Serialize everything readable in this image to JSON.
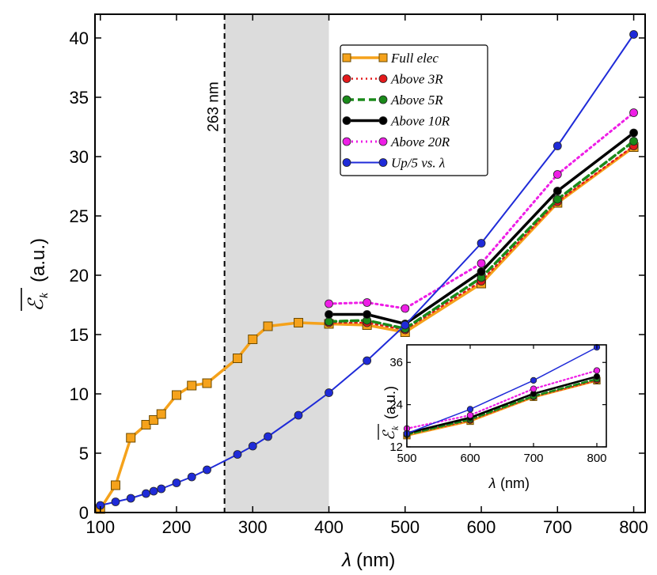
{
  "chart_data": {
    "type": "line",
    "main": {
      "xlabel": "λ (nm)",
      "ylabel": "ℰ_k (a.u.)",
      "xlim": [
        93,
        815
      ],
      "ylim": [
        0,
        42
      ],
      "xticks": [
        100,
        200,
        300,
        400,
        500,
        600,
        700,
        800
      ],
      "yticks": [
        0,
        5,
        10,
        15,
        20,
        25,
        30,
        35,
        40
      ],
      "shaded_region": [
        263,
        400
      ],
      "vline": {
        "x": 263,
        "label": "263 nm"
      },
      "series": [
        {
          "name": "Full elec",
          "color": "#f5a21b",
          "marker": "square",
          "style": "solid",
          "x": [
            100,
            120,
            140,
            160,
            170,
            180,
            200,
            220,
            240,
            280,
            300,
            320,
            360,
            400,
            450,
            500,
            600,
            700,
            800
          ],
          "y": [
            0.3,
            2.3,
            6.3,
            7.4,
            7.8,
            8.3,
            9.9,
            10.7,
            10.9,
            13.0,
            14.6,
            15.7,
            16.0,
            15.9,
            15.8,
            15.2,
            19.3,
            26.1,
            30.8
          ]
        },
        {
          "name": "Above 3R",
          "color": "#e31a1c",
          "marker": "circle",
          "style": "dotted",
          "x": [
            400,
            450,
            500,
            600,
            700,
            800
          ],
          "y": [
            16.0,
            16.0,
            15.4,
            19.5,
            26.2,
            30.9
          ]
        },
        {
          "name": "Above 5R",
          "color": "#1a8a1a",
          "marker": "circle",
          "style": "dashed",
          "x": [
            400,
            450,
            500,
            600,
            700,
            800
          ],
          "y": [
            16.1,
            16.2,
            15.5,
            19.8,
            26.4,
            31.3
          ]
        },
        {
          "name": "Above 10R",
          "color": "#000000",
          "marker": "circle",
          "style": "solid",
          "x": [
            400,
            450,
            500,
            600,
            700,
            800
          ],
          "y": [
            16.7,
            16.7,
            15.9,
            20.3,
            27.1,
            32.0
          ]
        },
        {
          "name": "Above 20R",
          "color": "#ee1ee6",
          "marker": "circle",
          "style": "dotted",
          "x": [
            400,
            450,
            500,
            600,
            700,
            800
          ],
          "y": [
            17.6,
            17.7,
            17.2,
            21.0,
            28.5,
            33.7
          ]
        },
        {
          "name": "Up/5 vs. λ",
          "color": "#1f2bd8",
          "marker": "circle",
          "style": "solid",
          "x": [
            100,
            120,
            140,
            160,
            170,
            180,
            200,
            220,
            240,
            280,
            300,
            320,
            360,
            400,
            450,
            500,
            600,
            700,
            800
          ],
          "y": [
            0.6,
            0.9,
            1.2,
            1.6,
            1.8,
            2.0,
            2.5,
            3.0,
            3.6,
            4.9,
            5.6,
            6.4,
            8.2,
            10.1,
            12.8,
            15.8,
            22.7,
            30.9,
            40.3
          ]
        }
      ],
      "legend": {
        "placement": "top-center",
        "entries": [
          {
            "label": "Full elec"
          },
          {
            "label": "Above 3R"
          },
          {
            "label": "Above 5R"
          },
          {
            "label": "Above 10R"
          },
          {
            "label": "Above 20R"
          },
          {
            "label": "Up/5 vs. λ"
          }
        ]
      }
    },
    "inset": {
      "placement": "bottom-right",
      "xlabel": "λ (nm)",
      "ylabel": "ℰ_k (a.u.)",
      "xlim": [
        500,
        815
      ],
      "ylim": [
        12,
        41
      ],
      "xticks": [
        500,
        600,
        700,
        800
      ],
      "yticks": [
        12,
        24,
        36
      ]
    }
  }
}
